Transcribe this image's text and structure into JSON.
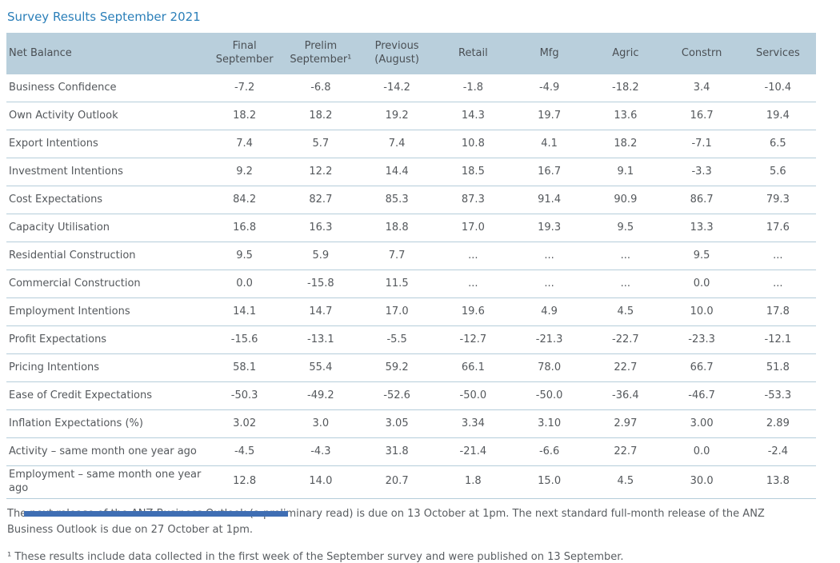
{
  "title": "Survey Results September 2021",
  "table": {
    "row_header_label": "Net Balance",
    "columns": [
      "Final September",
      "Prelim September¹",
      "Previous (August)",
      "Retail",
      "Mfg",
      "Agric",
      "Constrn",
      "Services"
    ],
    "rows": [
      {
        "label": "Business Confidence",
        "values": [
          "-7.2",
          "-6.8",
          "-14.2",
          "-1.8",
          "-4.9",
          "-18.2",
          "3.4",
          "-10.4"
        ]
      },
      {
        "label": "Own Activity Outlook",
        "values": [
          "18.2",
          "18.2",
          "19.2",
          "14.3",
          "19.7",
          "13.6",
          "16.7",
          "19.4"
        ]
      },
      {
        "label": "Export Intentions",
        "values": [
          "7.4",
          "5.7",
          "7.4",
          "10.8",
          "4.1",
          "18.2",
          "-7.1",
          "6.5"
        ]
      },
      {
        "label": "Investment Intentions",
        "values": [
          "9.2",
          "12.2",
          "14.4",
          "18.5",
          "16.7",
          "9.1",
          "-3.3",
          "5.6"
        ]
      },
      {
        "label": "Cost Expectations",
        "values": [
          "84.2",
          "82.7",
          "85.3",
          "87.3",
          "91.4",
          "90.9",
          "86.7",
          "79.3"
        ]
      },
      {
        "label": "Capacity Utilisation",
        "values": [
          "16.8",
          "16.3",
          "18.8",
          "17.0",
          "19.3",
          "9.5",
          "13.3",
          "17.6"
        ]
      },
      {
        "label": "Residential Construction",
        "values": [
          "9.5",
          "5.9",
          "7.7",
          "...",
          "...",
          "...",
          "9.5",
          "..."
        ]
      },
      {
        "label": "Commercial Construction",
        "values": [
          "0.0",
          "-15.8",
          "11.5",
          "...",
          "...",
          "...",
          "0.0",
          "..."
        ]
      },
      {
        "label": "Employment Intentions",
        "values": [
          "14.1",
          "14.7",
          "17.0",
          "19.6",
          "4.9",
          "4.5",
          "10.0",
          "17.8"
        ]
      },
      {
        "label": "Profit Expectations",
        "values": [
          "-15.6",
          "-13.1",
          "-5.5",
          "-12.7",
          "-21.3",
          "-22.7",
          "-23.3",
          "-12.1"
        ]
      },
      {
        "label": "Pricing Intentions",
        "values": [
          "58.1",
          "55.4",
          "59.2",
          "66.1",
          "78.0",
          "22.7",
          "66.7",
          "51.8"
        ]
      },
      {
        "label": "Ease of Credit Expectations",
        "values": [
          "-50.3",
          "-49.2",
          "-52.6",
          "-50.0",
          "-50.0",
          "-36.4",
          "-46.7",
          "-53.3"
        ]
      },
      {
        "label": "Inflation Expectations (%)",
        "values": [
          "3.02",
          "3.0",
          "3.05",
          "3.34",
          "3.10",
          "2.97",
          "3.00",
          "2.89"
        ]
      },
      {
        "label": "Activity – same month one year ago",
        "values": [
          "-4.5",
          "-4.3",
          "31.8",
          "-21.4",
          "-6.6",
          "22.7",
          "0.0",
          "-2.4"
        ]
      },
      {
        "label": "Employment – same month one year ago",
        "values": [
          "12.8",
          "14.0",
          "20.7",
          "1.8",
          "15.0",
          "4.5",
          "30.0",
          "13.8"
        ]
      }
    ]
  },
  "footer": {
    "release_note": "The next release of the ANZ Business Outlook (a preliminary read) is due on 13 October at 1pm. The next standard full-month release of the ANZ Business Outlook is due on 27 October at 1pm.",
    "footnote": "¹ These results include data collected in the first week of the September survey and were published on 13 September."
  },
  "colors": {
    "title": "#2b7fb9",
    "header_bg": "#b9cfdc",
    "header_text": "#4a4f54",
    "body_text": "#54585c",
    "divider": "#b5cdda",
    "footer_text": "#595d61",
    "bottom_bar": "#3f6eb3"
  }
}
